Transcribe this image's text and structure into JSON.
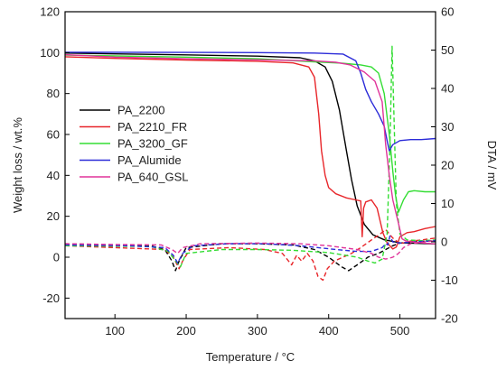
{
  "chart_data": {
    "type": "line",
    "title": "",
    "xlabel": "Temperature / °C",
    "ylabel_left": "Weight loss / wt.%",
    "ylabel_right": "DTA / mV",
    "xlim": [
      30,
      550
    ],
    "ylim_left": [
      -30,
      120
    ],
    "ylim_right": [
      -20,
      60
    ],
    "xticks": [
      100,
      200,
      300,
      400,
      500
    ],
    "yticks_left": [
      -20,
      0,
      20,
      40,
      60,
      80,
      100,
      120
    ],
    "yticks_right": [
      -20,
      -10,
      0,
      10,
      20,
      30,
      40,
      50,
      60
    ],
    "grid": false,
    "legend_position": "center-left",
    "series": [
      {
        "name": "PA_2200",
        "color": "#000000",
        "tga": [
          [
            30,
            99.8
          ],
          [
            100,
            99.4
          ],
          [
            200,
            98.9
          ],
          [
            300,
            98.3
          ],
          [
            360,
            97.5
          ],
          [
            380,
            96
          ],
          [
            395,
            93
          ],
          [
            405,
            86
          ],
          [
            415,
            72
          ],
          [
            425,
            52
          ],
          [
            432,
            38
          ],
          [
            440,
            25
          ],
          [
            450,
            16
          ],
          [
            462,
            11
          ],
          [
            478,
            8.5
          ],
          [
            500,
            7
          ],
          [
            520,
            6.8
          ],
          [
            550,
            6.5
          ]
        ],
        "dta": [
          [
            30,
            -0.5
          ],
          [
            100,
            -0.8
          ],
          [
            150,
            -1
          ],
          [
            170,
            -2
          ],
          [
            180,
            -5
          ],
          [
            185,
            -7.5
          ],
          [
            190,
            -5
          ],
          [
            200,
            -1.5
          ],
          [
            250,
            -0.5
          ],
          [
            300,
            -0.5
          ],
          [
            350,
            -0.8
          ],
          [
            380,
            -2
          ],
          [
            400,
            -4
          ],
          [
            418,
            -6.5
          ],
          [
            428,
            -7.5
          ],
          [
            440,
            -6
          ],
          [
            455,
            -4
          ],
          [
            470,
            -3
          ],
          [
            480,
            -2
          ],
          [
            490,
            -1
          ],
          [
            500,
            -0.3
          ],
          [
            520,
            0
          ],
          [
            550,
            0.3
          ]
        ]
      },
      {
        "name": "PA_2210_FR",
        "color": "#e8262a",
        "tga": [
          [
            30,
            98
          ],
          [
            100,
            97.2
          ],
          [
            200,
            96.4
          ],
          [
            300,
            95.8
          ],
          [
            350,
            95
          ],
          [
            372,
            93
          ],
          [
            380,
            88
          ],
          [
            386,
            70
          ],
          [
            390,
            52
          ],
          [
            395,
            40
          ],
          [
            400,
            34
          ],
          [
            410,
            31
          ],
          [
            425,
            29
          ],
          [
            438,
            28
          ],
          [
            445,
            27.5
          ],
          [
            447,
            10
          ],
          [
            449,
            24
          ],
          [
            452,
            27
          ],
          [
            460,
            28
          ],
          [
            468,
            24
          ],
          [
            476,
            12
          ],
          [
            482,
            7
          ],
          [
            490,
            4
          ],
          [
            495,
            5
          ],
          [
            500,
            10
          ],
          [
            510,
            12
          ],
          [
            520,
            12.5
          ],
          [
            535,
            14
          ],
          [
            550,
            15
          ]
        ],
        "dta": [
          [
            30,
            -1
          ],
          [
            100,
            -1.5
          ],
          [
            170,
            -2
          ],
          [
            182,
            -4
          ],
          [
            190,
            -7
          ],
          [
            195,
            -5
          ],
          [
            205,
            -2
          ],
          [
            260,
            -1.5
          ],
          [
            310,
            -2
          ],
          [
            335,
            -3
          ],
          [
            348,
            -6
          ],
          [
            355,
            -3.5
          ],
          [
            362,
            -5
          ],
          [
            370,
            -3
          ],
          [
            378,
            -5
          ],
          [
            385,
            -9
          ],
          [
            392,
            -10
          ],
          [
            398,
            -7
          ],
          [
            408,
            -5
          ],
          [
            420,
            -4
          ],
          [
            432,
            -3
          ],
          [
            445,
            -1.5
          ],
          [
            460,
            0.5
          ],
          [
            472,
            2
          ],
          [
            480,
            3.2
          ],
          [
            490,
            1
          ],
          [
            500,
            -0.5
          ],
          [
            515,
            0.2
          ],
          [
            530,
            0.5
          ],
          [
            550,
            1
          ]
        ]
      },
      {
        "name": "PA_3200_GF",
        "color": "#33dd33",
        "tga": [
          [
            30,
            98.8
          ],
          [
            100,
            98.4
          ],
          [
            200,
            97.8
          ],
          [
            300,
            97
          ],
          [
            380,
            95.5
          ],
          [
            420,
            94.8
          ],
          [
            445,
            94
          ],
          [
            460,
            93
          ],
          [
            470,
            90
          ],
          [
            478,
            80
          ],
          [
            485,
            60
          ],
          [
            490,
            42
          ],
          [
            494,
            30
          ],
          [
            498,
            22
          ],
          [
            505,
            28
          ],
          [
            512,
            32
          ],
          [
            520,
            32.5
          ],
          [
            535,
            32
          ],
          [
            550,
            32
          ]
        ],
        "dta": [
          [
            30,
            -1
          ],
          [
            150,
            -1.2
          ],
          [
            175,
            -2.5
          ],
          [
            185,
            -5
          ],
          [
            192,
            -6.5
          ],
          [
            200,
            -3
          ],
          [
            250,
            -2
          ],
          [
            300,
            -2
          ],
          [
            350,
            -2.2
          ],
          [
            400,
            -2.8
          ],
          [
            440,
            -4
          ],
          [
            455,
            -5
          ],
          [
            465,
            -5.5
          ],
          [
            475,
            -4.5
          ],
          [
            482,
            2
          ],
          [
            486,
            25
          ],
          [
            489,
            51
          ],
          [
            492,
            30
          ],
          [
            495,
            10
          ],
          [
            500,
            2
          ],
          [
            510,
            0.5
          ],
          [
            530,
            0.3
          ],
          [
            550,
            0.5
          ]
        ]
      },
      {
        "name": "PA_Alumide",
        "color": "#2b2bd8",
        "tga": [
          [
            30,
            100.2
          ],
          [
            100,
            100.2
          ],
          [
            200,
            100.1
          ],
          [
            300,
            100
          ],
          [
            380,
            99.8
          ],
          [
            420,
            99.3
          ],
          [
            438,
            96
          ],
          [
            445,
            90
          ],
          [
            452,
            82
          ],
          [
            460,
            76
          ],
          [
            470,
            70
          ],
          [
            478,
            64
          ],
          [
            482,
            57
          ],
          [
            485,
            52
          ],
          [
            490,
            55
          ],
          [
            500,
            57
          ],
          [
            515,
            57.5
          ],
          [
            530,
            57.5
          ],
          [
            550,
            58
          ]
        ],
        "dta": [
          [
            30,
            -0.8
          ],
          [
            120,
            -1
          ],
          [
            170,
            -1.5
          ],
          [
            182,
            -3.5
          ],
          [
            188,
            -5.5
          ],
          [
            195,
            -3
          ],
          [
            210,
            -1
          ],
          [
            260,
            -0.5
          ],
          [
            310,
            -0.5
          ],
          [
            360,
            -1
          ],
          [
            410,
            -2
          ],
          [
            440,
            -2.5
          ],
          [
            460,
            -2.5
          ],
          [
            475,
            -1.5
          ],
          [
            480,
            -0.5
          ],
          [
            483,
            -0.8
          ],
          [
            486,
            1.5
          ],
          [
            490,
            0
          ],
          [
            500,
            -0.3
          ],
          [
            520,
            0
          ],
          [
            550,
            0.3
          ]
        ]
      },
      {
        "name": "PA_640_GSL",
        "color": "#e0339a",
        "tga": [
          [
            30,
            99
          ],
          [
            100,
            97.8
          ],
          [
            200,
            97
          ],
          [
            300,
            96.5
          ],
          [
            380,
            96
          ],
          [
            410,
            95.3
          ],
          [
            430,
            94
          ],
          [
            450,
            90.5
          ],
          [
            465,
            86
          ],
          [
            475,
            76
          ],
          [
            480,
            55
          ],
          [
            485,
            40
          ],
          [
            490,
            28
          ],
          [
            497,
            18
          ],
          [
            503,
            9
          ],
          [
            508,
            8
          ],
          [
            515,
            7.5
          ],
          [
            530,
            7
          ],
          [
            550,
            6.5
          ]
        ],
        "dta": [
          [
            30,
            -0.5
          ],
          [
            100,
            -0.7
          ],
          [
            165,
            -0.8
          ],
          [
            180,
            -2
          ],
          [
            188,
            -3
          ],
          [
            195,
            -1.5
          ],
          [
            220,
            -0.5
          ],
          [
            300,
            -0.3
          ],
          [
            360,
            -0.5
          ],
          [
            400,
            -1
          ],
          [
            420,
            -1.5
          ],
          [
            440,
            -2
          ],
          [
            460,
            -3
          ],
          [
            470,
            -4
          ],
          [
            480,
            -4.5
          ],
          [
            490,
            -4
          ],
          [
            498,
            -3
          ],
          [
            505,
            -1.5
          ],
          [
            515,
            -0.5
          ],
          [
            535,
            0
          ],
          [
            550,
            0.3
          ]
        ]
      }
    ]
  }
}
